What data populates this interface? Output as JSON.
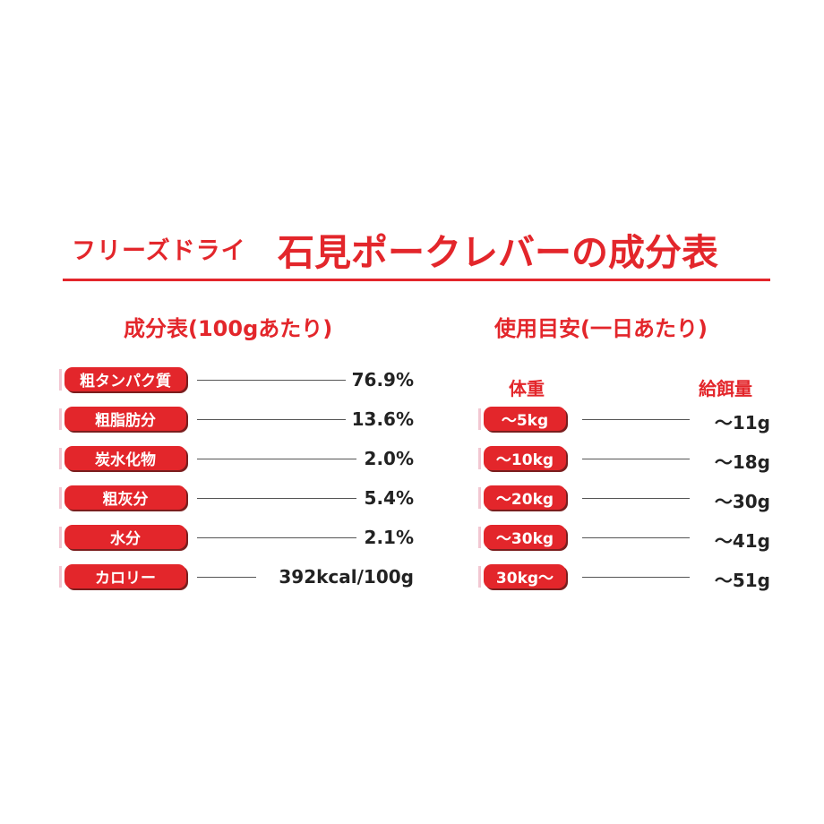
{
  "title": {
    "small": "フリーズドライ",
    "big": "石見ポークレバーの成分表"
  },
  "composition": {
    "heading": "成分表(100gあたり)",
    "rows": [
      {
        "label": "粗タンパク質",
        "value": "76.9%"
      },
      {
        "label": "粗脂肪分",
        "value": "13.6%"
      },
      {
        "label": "炭水化物",
        "value": "2.0%"
      },
      {
        "label": "粗灰分",
        "value": "5.4%"
      },
      {
        "label": "水分",
        "value": "2.1%"
      },
      {
        "label": "カロリー",
        "value": "392kcal/100g"
      }
    ]
  },
  "feeding": {
    "heading": "使用目安(一日あたり)",
    "col_weight": "体重",
    "col_amount": "給餌量",
    "rows": [
      {
        "weight": "～5kg",
        "amount": "～11g"
      },
      {
        "weight": "～10kg",
        "amount": "～18g"
      },
      {
        "weight": "～20kg",
        "amount": "～30g"
      },
      {
        "weight": "～30kg",
        "amount": "～41g"
      },
      {
        "weight": "30kg～",
        "amount": "～51g"
      }
    ]
  },
  "colors": {
    "accent": "#e3262b",
    "pill_shadow": "#7a1e1e",
    "text": "#222222"
  }
}
